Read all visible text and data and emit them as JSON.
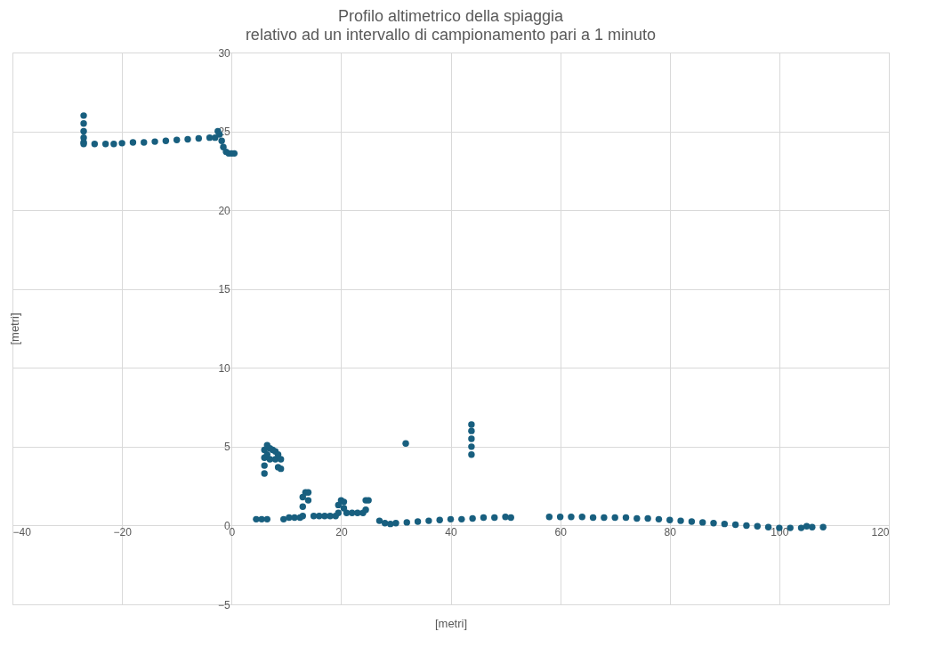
{
  "chart_data": {
    "type": "scatter",
    "title": "Profilo altimetrico della spiaggia",
    "subtitle": "relativo ad un intervallo di campionamento pari a 1 minuto",
    "xlabel": "[metri]",
    "ylabel": "[metri]",
    "x": [
      -27,
      -27,
      -27,
      -27,
      -27,
      -27,
      -25,
      -23,
      -21.5,
      -20,
      -18,
      -16,
      -14,
      -12,
      -10,
      -8,
      -6,
      -4,
      -3,
      -2.5,
      -2.2,
      -1.8,
      -1.5,
      -1,
      -0.5,
      0,
      0.5,
      4.5,
      5.5,
      6.5,
      6,
      6,
      6,
      6,
      6.5,
      6.5,
      7,
      7,
      7.5,
      8,
      8,
      8.5,
      8.5,
      9,
      9,
      9.5,
      10.5,
      11.5,
      12.5,
      13,
      13,
      13,
      13.5,
      14,
      14,
      15,
      16,
      17,
      18,
      19,
      19.5,
      19.5,
      20,
      20.5,
      20.5,
      21,
      22,
      23,
      24,
      24.5,
      24.5,
      25,
      27,
      28,
      29,
      30,
      31.8,
      32,
      34,
      36,
      38,
      40,
      42,
      43.8,
      43.8,
      43.8,
      43.8,
      43.8,
      44,
      46,
      48,
      50,
      51,
      58,
      60,
      62,
      64,
      66,
      68,
      70,
      72,
      74,
      76,
      78,
      80,
      82,
      84,
      86,
      88,
      90,
      92,
      94,
      96,
      98,
      100,
      102,
      104,
      105,
      106,
      108
    ],
    "values": [
      26,
      25.5,
      25,
      24.6,
      24.3,
      24.2,
      24.2,
      24.2,
      24.2,
      24.25,
      24.3,
      24.3,
      24.35,
      24.4,
      24.45,
      24.5,
      24.55,
      24.6,
      24.6,
      25,
      24.8,
      24.4,
      24,
      23.7,
      23.6,
      23.6,
      23.6,
      0.4,
      0.4,
      0.4,
      3.3,
      3.8,
      4.3,
      4.8,
      5.1,
      4.5,
      4.9,
      4.2,
      4.8,
      4.7,
      4.2,
      4.5,
      3.7,
      4.2,
      3.6,
      0.4,
      0.5,
      0.5,
      0.5,
      0.6,
      1.2,
      1.8,
      2.1,
      2.1,
      1.6,
      0.6,
      0.6,
      0.6,
      0.6,
      0.6,
      0.8,
      1.3,
      1.6,
      1.5,
      1.1,
      0.8,
      0.8,
      0.8,
      0.8,
      1.0,
      1.6,
      1.6,
      0.3,
      0.15,
      0.1,
      0.15,
      5.2,
      0.2,
      0.25,
      0.3,
      0.35,
      0.4,
      0.4,
      4.5,
      5,
      5.5,
      6,
      6.4,
      0.45,
      0.5,
      0.5,
      0.55,
      0.5,
      0.55,
      0.55,
      0.55,
      0.55,
      0.5,
      0.5,
      0.5,
      0.5,
      0.45,
      0.45,
      0.4,
      0.35,
      0.3,
      0.25,
      0.2,
      0.15,
      0.1,
      0.05,
      0,
      -0.05,
      -0.1,
      -0.15,
      -0.15,
      -0.15,
      -0.05,
      -0.1,
      -0.1
    ],
    "color": "#185f7f",
    "marker": "circle",
    "xlim": [
      -40,
      120
    ],
    "xticks": [
      -40,
      -20,
      0,
      20,
      40,
      60,
      80,
      100,
      120
    ],
    "ylim": [
      -5,
      30
    ],
    "yticks": [
      -5,
      0,
      5,
      10,
      15,
      20,
      25,
      30
    ],
    "grid": true
  }
}
